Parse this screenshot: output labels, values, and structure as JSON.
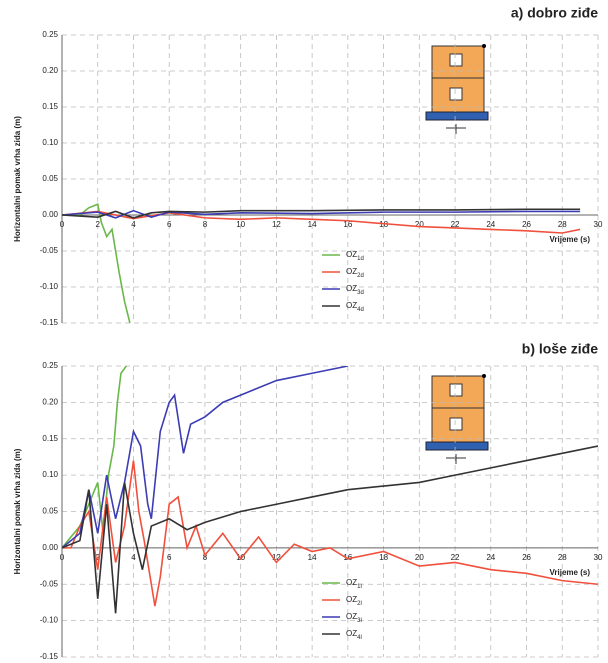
{
  "chart_data": [
    {
      "type": "line",
      "title": "a) dobro ziđe",
      "x_label": "Vrijeme (s)",
      "y_label": "Horizontalni pomak vrha zida (m)",
      "xlim": [
        0,
        30
      ],
      "xticks": [
        0,
        2,
        4,
        6,
        8,
        10,
        12,
        14,
        16,
        18,
        20,
        22,
        24,
        26,
        28,
        30
      ],
      "ylim": [
        -0.15,
        0.25
      ],
      "yticks": [
        -0.15,
        {
          "value": -0.1,
          "label": "-0.10"
        },
        -0.05,
        {
          "value": 0,
          "label": "0.00"
        },
        0.05,
        {
          "value": 0.1,
          "label": "0.10"
        },
        0.15,
        {
          "value": 0.2,
          "label": "0.20"
        },
        0.25
      ],
      "grid": true,
      "series": [
        {
          "name": "OZ1d",
          "color": "#6ab84a",
          "x": [
            0,
            1,
            1.5,
            2,
            2.2,
            2.5,
            2.8,
            3.0,
            3.2,
            3.5,
            3.8
          ],
          "values": [
            0,
            0,
            0.01,
            0.015,
            -0.01,
            -0.03,
            -0.02,
            -0.05,
            -0.08,
            -0.12,
            -0.15
          ]
        },
        {
          "name": "OZ2d",
          "color": "#f0503c",
          "x": [
            0,
            2,
            4,
            6,
            8,
            10,
            12,
            14,
            16,
            18,
            20,
            22,
            24,
            26,
            28,
            29
          ],
          "values": [
            0,
            0.005,
            -0.005,
            0.003,
            -0.004,
            -0.006,
            -0.004,
            -0.006,
            -0.008,
            -0.012,
            -0.016,
            -0.018,
            -0.02,
            -0.022,
            -0.025,
            -0.02
          ]
        },
        {
          "name": "OZ3d",
          "color": "#3c3cb4",
          "x": [
            0,
            2,
            3,
            4,
            5,
            6,
            8,
            10,
            14,
            18,
            22,
            26,
            29
          ],
          "values": [
            0,
            0.004,
            -0.004,
            0.006,
            -0.003,
            0.004,
            0.001,
            0.003,
            0.002,
            0.004,
            0.004,
            0.005,
            0.005
          ]
        },
        {
          "name": "OZ4d",
          "color": "#333333",
          "x": [
            0,
            2,
            3,
            4,
            5,
            6,
            8,
            10,
            14,
            18,
            22,
            26,
            29
          ],
          "values": [
            0,
            -0.003,
            0.005,
            -0.004,
            0.003,
            0.005,
            0.004,
            0.006,
            0.006,
            0.007,
            0.007,
            0.008,
            0.008
          ]
        }
      ]
    },
    {
      "type": "line",
      "title": "b) loše ziđe",
      "x_label": "Vrijeme (s)",
      "y_label": "Horizontalni pomak vrha zida (m)",
      "xlim": [
        0,
        30
      ],
      "xticks": [
        0,
        2,
        4,
        6,
        8,
        10,
        12,
        14,
        16,
        18,
        20,
        22,
        24,
        26,
        28,
        30
      ],
      "ylim": [
        -0.15,
        0.25
      ],
      "yticks": [
        -0.15,
        {
          "value": -0.1,
          "label": "-0.10"
        },
        -0.05,
        {
          "value": 0,
          "label": "0.00"
        },
        0.05,
        {
          "value": 0.1,
          "label": "0.10"
        },
        0.15,
        {
          "value": 0.2,
          "label": "0.20"
        },
        0.25
      ],
      "grid": true,
      "series": [
        {
          "name": "OZ1l",
          "color": "#6ab84a",
          "x": [
            0,
            1,
            1.5,
            2,
            2.3,
            2.6,
            2.9,
            3.1,
            3.3,
            3.6
          ],
          "values": [
            0,
            0.03,
            0.06,
            0.09,
            0.02,
            0.1,
            0.14,
            0.2,
            0.24,
            0.25
          ]
        },
        {
          "name": "OZ2l",
          "color": "#f0503c",
          "x": [
            0,
            0.5,
            1,
            1.5,
            2,
            2.5,
            3,
            3.5,
            4,
            4.3,
            4.6,
            5,
            5.2,
            5.5,
            6,
            6.5,
            7,
            7.5,
            8,
            9,
            10,
            11,
            12,
            13,
            14,
            15,
            16,
            18,
            20,
            22,
            24,
            26,
            28,
            30
          ],
          "values": [
            0,
            0,
            0.03,
            0.05,
            -0.03,
            0.07,
            -0.02,
            0.03,
            0.12,
            0.05,
            0.01,
            -0.05,
            -0.08,
            -0.04,
            0.06,
            0.07,
            0,
            0.03,
            -0.01,
            0.02,
            -0.015,
            0.015,
            -0.02,
            0.005,
            -0.005,
            0,
            -0.015,
            -0.005,
            -0.025,
            -0.02,
            -0.03,
            -0.035,
            -0.045,
            -0.05
          ]
        },
        {
          "name": "OZ3l",
          "color": "#3c3cb4",
          "x": [
            0,
            1,
            1.5,
            2,
            2.5,
            3,
            3.5,
            4,
            4.4,
            4.8,
            5,
            5.5,
            6,
            6.3,
            6.8,
            7.2,
            8,
            9,
            10,
            12,
            14,
            16
          ],
          "values": [
            0,
            0.02,
            0.08,
            0.02,
            0.1,
            0.04,
            0.09,
            0.16,
            0.14,
            0.06,
            0.04,
            0.16,
            0.2,
            0.21,
            0.13,
            0.17,
            0.18,
            0.2,
            0.21,
            0.23,
            0.24,
            0.25
          ]
        },
        {
          "name": "OZ4l",
          "color": "#333333",
          "x": [
            0,
            1,
            1.5,
            2,
            2.5,
            3,
            3.5,
            4,
            4.5,
            5,
            6,
            7,
            8,
            10,
            12,
            14,
            16,
            18,
            20,
            22,
            24,
            26,
            28,
            30
          ],
          "values": [
            0,
            0.01,
            0.08,
            -0.07,
            0.06,
            -0.09,
            0.09,
            0.02,
            -0.03,
            0.03,
            0.04,
            0.025,
            0.035,
            0.05,
            0.06,
            0.07,
            0.08,
            0.085,
            0.09,
            0.1,
            0.11,
            0.12,
            0.13,
            0.14
          ]
        }
      ]
    }
  ]
}
